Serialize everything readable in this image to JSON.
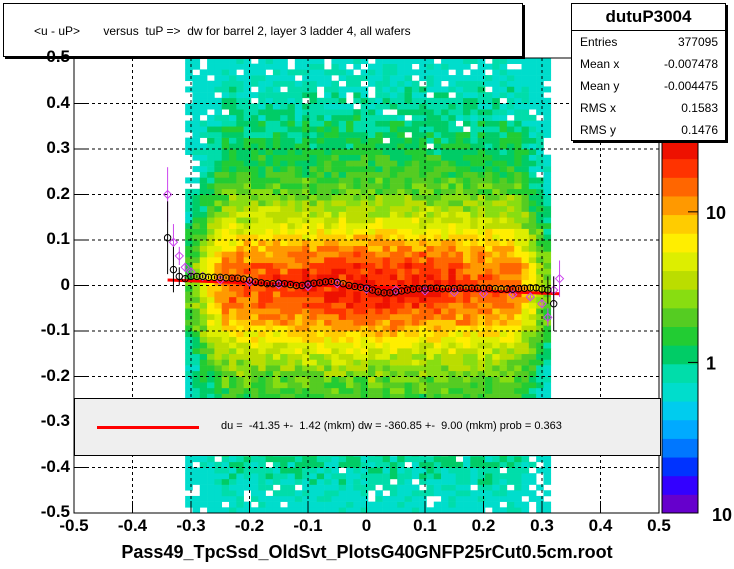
{
  "title": "<u - uP>       versus  tuP =>  dw for barrel 2, layer 3 ladder 4, all wafers",
  "stats": {
    "name": "dutuP3004",
    "rows": [
      {
        "label": "Entries",
        "value": "377095"
      },
      {
        "label": "Mean x",
        "value": "-0.007478"
      },
      {
        "label": "Mean y",
        "value": "-0.004475"
      },
      {
        "label": "RMS x",
        "value": "0.1583"
      },
      {
        "label": "RMS y",
        "value": "0.1476"
      }
    ]
  },
  "legend_text": "du =  -41.35 +-  1.42 (mkm) dw = -360.85 +-  9.00 (mkm) prob = 0.363",
  "x_title": "Pass49_TpcSsd_OldSvt_PlotsG40GNFP25rCut0.5cm.root",
  "colors": {
    "fit_line": "#ff0000",
    "profile_black": "#000000",
    "profile_violet": "#cc44ee"
  },
  "chart_data": {
    "type": "heatmap",
    "xlim": [
      -0.5,
      0.5
    ],
    "ylim": [
      -0.5,
      0.5
    ],
    "x_ticks": [
      "-0.5",
      "-0.4",
      "-0.3",
      "-0.2",
      "-0.1",
      "0",
      "0.1",
      "0.2",
      "0.3",
      "0.4",
      "0.5"
    ],
    "y_ticks": [
      "-0.5",
      "-0.4",
      "-0.3",
      "-0.2",
      "-0.1",
      "0",
      "0.1",
      "0.2",
      "0.3",
      "0.4",
      "0.5"
    ],
    "z_ticks": [
      "1",
      "10"
    ],
    "z_scale": "log",
    "grid": true,
    "density": {
      "x_range": [
        -0.31,
        0.31
      ],
      "core_y_width": 0.1,
      "halo_y_width": 0.45
    },
    "fit_line": {
      "x": [
        -0.34,
        0.33
      ],
      "y": [
        0.012,
        -0.018
      ]
    },
    "profile_black": {
      "x": [
        -0.34,
        -0.33,
        -0.32,
        -0.31,
        -0.3,
        -0.29,
        -0.28,
        -0.27,
        -0.26,
        -0.25,
        -0.24,
        -0.23,
        -0.22,
        -0.21,
        -0.2,
        -0.19,
        -0.18,
        -0.17,
        -0.16,
        -0.15,
        -0.14,
        -0.13,
        -0.12,
        -0.11,
        -0.1,
        -0.09,
        -0.08,
        -0.07,
        -0.06,
        -0.05,
        -0.04,
        -0.03,
        -0.02,
        -0.01,
        0.0,
        0.01,
        0.02,
        0.03,
        0.04,
        0.05,
        0.06,
        0.07,
        0.08,
        0.09,
        0.1,
        0.11,
        0.12,
        0.13,
        0.14,
        0.15,
        0.16,
        0.17,
        0.18,
        0.19,
        0.2,
        0.21,
        0.22,
        0.23,
        0.24,
        0.25,
        0.26,
        0.27,
        0.28,
        0.29,
        0.3,
        0.31,
        0.32
      ],
      "y": [
        0.105,
        0.035,
        0.02,
        0.015,
        0.02,
        0.02,
        0.02,
        0.018,
        0.018,
        0.018,
        0.017,
        0.016,
        0.016,
        0.014,
        0.012,
        0.008,
        0.006,
        0.004,
        0.004,
        0.005,
        0.004,
        0.002,
        0.0,
        0.0,
        0.003,
        0.005,
        0.006,
        0.008,
        0.009,
        0.007,
        0.004,
        0.0,
        -0.002,
        -0.004,
        -0.006,
        -0.01,
        -0.014,
        -0.016,
        -0.016,
        -0.014,
        -0.012,
        -0.01,
        -0.008,
        -0.007,
        -0.006,
        -0.006,
        -0.006,
        -0.007,
        -0.007,
        -0.007,
        -0.006,
        -0.006,
        -0.006,
        -0.006,
        -0.006,
        -0.006,
        -0.007,
        -0.008,
        -0.008,
        -0.008,
        -0.007,
        -0.006,
        -0.005,
        -0.005,
        -0.008,
        -0.01,
        -0.04
      ],
      "err": [
        0.08,
        0.05,
        0.02,
        0.005,
        0.005,
        0.004,
        0.004,
        0.004,
        0.004,
        0.004,
        0.003,
        0.003,
        0.003,
        0.003,
        0.003,
        0.003,
        0.003,
        0.003,
        0.003,
        0.003,
        0.003,
        0.003,
        0.003,
        0.003,
        0.003,
        0.003,
        0.003,
        0.003,
        0.003,
        0.003,
        0.003,
        0.003,
        0.003,
        0.003,
        0.003,
        0.003,
        0.003,
        0.003,
        0.003,
        0.003,
        0.003,
        0.003,
        0.003,
        0.003,
        0.003,
        0.003,
        0.003,
        0.003,
        0.003,
        0.003,
        0.003,
        0.003,
        0.003,
        0.003,
        0.003,
        0.003,
        0.003,
        0.003,
        0.003,
        0.003,
        0.004,
        0.004,
        0.005,
        0.006,
        0.01,
        0.03,
        0.06
      ]
    },
    "profile_violet": {
      "x": [
        -0.34,
        -0.33,
        -0.32,
        -0.31,
        -0.3,
        -0.28,
        -0.25,
        -0.2,
        -0.15,
        -0.1,
        -0.05,
        0.0,
        0.05,
        0.1,
        0.15,
        0.2,
        0.25,
        0.28,
        0.3,
        0.31,
        0.32,
        0.33
      ],
      "y": [
        0.2,
        0.095,
        0.065,
        0.04,
        0.03,
        0.02,
        0.012,
        0.008,
        0.002,
        -0.002,
        0.004,
        -0.008,
        -0.01,
        -0.012,
        -0.015,
        -0.018,
        -0.02,
        -0.025,
        -0.04,
        -0.07,
        -0.01,
        0.015
      ],
      "err": [
        0.06,
        0.04,
        0.02,
        0.01,
        0.006,
        0.004,
        0.003,
        0.003,
        0.003,
        0.003,
        0.003,
        0.003,
        0.003,
        0.003,
        0.003,
        0.003,
        0.003,
        0.005,
        0.01,
        0.02,
        0.03,
        0.04
      ]
    }
  }
}
